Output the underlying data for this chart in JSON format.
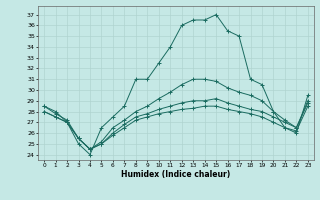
{
  "xlabel": "Humidex (Indice chaleur)",
  "xlim": [
    -0.5,
    23.5
  ],
  "ylim": [
    23.5,
    37.8
  ],
  "yticks": [
    24,
    25,
    26,
    27,
    28,
    29,
    30,
    31,
    32,
    33,
    34,
    35,
    36,
    37
  ],
  "xticks": [
    0,
    1,
    2,
    3,
    4,
    5,
    6,
    7,
    8,
    9,
    10,
    11,
    12,
    13,
    14,
    15,
    16,
    17,
    18,
    19,
    20,
    21,
    22,
    23
  ],
  "background_color": "#c5e8e5",
  "grid_color": "#b0d4d0",
  "line_color": "#1a6b60",
  "series": [
    {
      "x": [
        0,
        1,
        2,
        3,
        4,
        5,
        6,
        7,
        8,
        9,
        10,
        11,
        12,
        13,
        14,
        15,
        16,
        17,
        18,
        19,
        20,
        21,
        22,
        23
      ],
      "y": [
        28.5,
        28.0,
        27.0,
        25.0,
        24.0,
        26.5,
        27.5,
        28.5,
        31.0,
        31.0,
        32.5,
        34.0,
        36.0,
        36.5,
        36.5,
        37.0,
        35.5,
        35.0,
        31.0,
        30.5,
        28.0,
        26.5,
        26.0,
        29.5
      ]
    },
    {
      "x": [
        0,
        1,
        2,
        3,
        4,
        5,
        6,
        7,
        8,
        9,
        10,
        11,
        12,
        13,
        14,
        15,
        16,
        17,
        18,
        19,
        20,
        21,
        22,
        23
      ],
      "y": [
        28.5,
        27.8,
        27.2,
        25.5,
        24.5,
        25.2,
        26.5,
        27.2,
        28.0,
        28.5,
        29.2,
        29.8,
        30.5,
        31.0,
        31.0,
        30.8,
        30.2,
        29.8,
        29.5,
        29.0,
        28.0,
        27.2,
        26.5,
        29.0
      ]
    },
    {
      "x": [
        0,
        1,
        2,
        3,
        4,
        5,
        6,
        7,
        8,
        9,
        10,
        11,
        12,
        13,
        14,
        15,
        16,
        17,
        18,
        19,
        20,
        21,
        22,
        23
      ],
      "y": [
        28.0,
        27.5,
        27.0,
        25.5,
        24.5,
        25.0,
        26.0,
        26.8,
        27.5,
        27.8,
        28.2,
        28.5,
        28.8,
        29.0,
        29.0,
        29.2,
        28.8,
        28.5,
        28.2,
        28.0,
        27.5,
        27.0,
        26.5,
        28.8
      ]
    },
    {
      "x": [
        0,
        1,
        2,
        3,
        4,
        5,
        6,
        7,
        8,
        9,
        10,
        11,
        12,
        13,
        14,
        15,
        16,
        17,
        18,
        19,
        20,
        21,
        22,
        23
      ],
      "y": [
        28.0,
        27.5,
        27.0,
        25.5,
        24.5,
        25.0,
        25.8,
        26.5,
        27.2,
        27.5,
        27.8,
        28.0,
        28.2,
        28.3,
        28.5,
        28.5,
        28.2,
        28.0,
        27.8,
        27.5,
        27.0,
        26.5,
        26.2,
        28.5
      ]
    }
  ]
}
